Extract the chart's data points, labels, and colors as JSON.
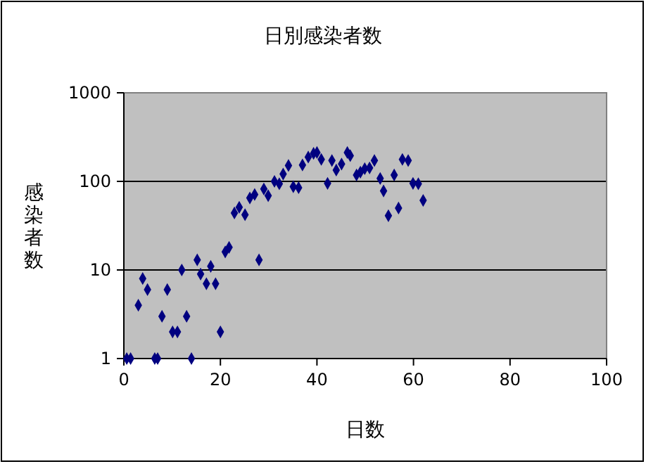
{
  "chart_data": {
    "type": "scatter",
    "title": "日別感染者数",
    "xlabel": "日数",
    "ylabel": "感染者数",
    "log": "y",
    "grid": "y",
    "marker": "diamond",
    "xlim": [
      0,
      100
    ],
    "xticks": [
      0,
      20,
      40,
      60,
      80,
      100
    ],
    "ylim": [
      1,
      1000
    ],
    "yticks": [
      1,
      10,
      100,
      1000
    ],
    "series": [
      {
        "color": "#000080",
        "x": [
          0.6,
          1.4,
          3,
          3.9,
          4.9,
          6.4,
          7,
          7.9,
          9,
          10.1,
          11.1,
          12,
          13,
          14,
          15.2,
          15.9,
          17.1,
          18,
          19,
          20,
          21,
          21.8,
          22.9,
          23.9,
          25.1,
          26.1,
          27.1,
          28,
          29,
          29.9,
          31.2,
          32.2,
          33,
          34.1,
          35.1,
          36.2,
          37,
          38.2,
          39.3,
          40,
          40.9,
          42.2,
          43.1,
          44,
          45.1,
          46.3,
          46.9,
          48.2,
          49,
          49.9,
          50.9,
          51.9,
          53.1,
          53.8,
          54.8,
          56,
          56.9,
          57.7,
          58.9,
          59.9,
          61,
          62
        ],
        "values": [
          1,
          1,
          4,
          8,
          6,
          1,
          1,
          3,
          6,
          2,
          2,
          10,
          3,
          1,
          13,
          9,
          7,
          11,
          7,
          2,
          16,
          18,
          44,
          51,
          42,
          65,
          71,
          13,
          82,
          69,
          100,
          94,
          121,
          151,
          87,
          85,
          153,
          188,
          207,
          212,
          177,
          95,
          172,
          134,
          157,
          212,
          195,
          118,
          127,
          139,
          142,
          172,
          108,
          78,
          41,
          118,
          50,
          177,
          172,
          95,
          94,
          61
        ]
      }
    ]
  }
}
